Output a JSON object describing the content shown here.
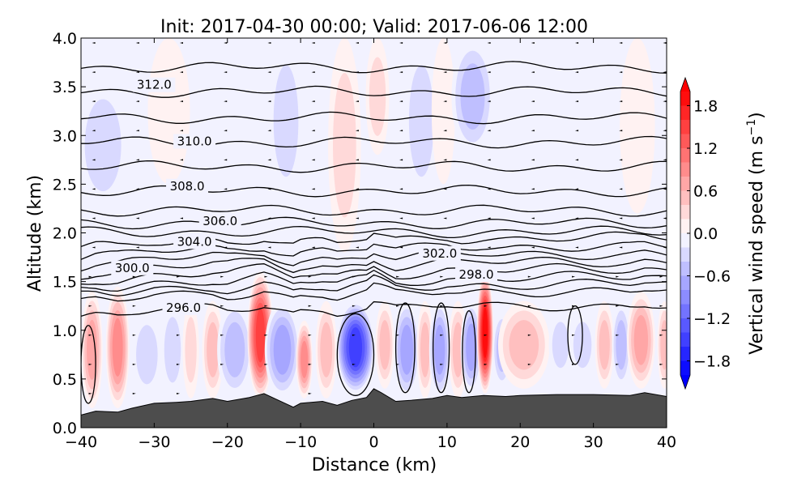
{
  "chart_data": {
    "type": "heatmap",
    "title": "Init: 2017-04-30 00:00; Valid: 2017-06-06 12:00",
    "xlabel": "Distance (km)",
    "ylabel": "Altitude (km)",
    "xlim": [
      -40,
      40
    ],
    "ylim": [
      0.0,
      4.0
    ],
    "xticks": [
      -40,
      -30,
      -20,
      -10,
      0,
      10,
      20,
      30,
      40
    ],
    "xtick_labels": [
      "−40",
      "−30",
      "−20",
      "−10",
      "0",
      "10",
      "20",
      "30",
      "40"
    ],
    "yticks": [
      0.0,
      0.5,
      1.0,
      1.5,
      2.0,
      2.5,
      3.0,
      3.5,
      4.0
    ],
    "ytick_labels": [
      "0.0",
      "0.5",
      "1.0",
      "1.5",
      "2.0",
      "2.5",
      "3.0",
      "3.5",
      "4.0"
    ],
    "colorbar": {
      "label": "Vertical wind speed (m s⁻¹)",
      "label_main": "Vertical wind speed (m s",
      "label_sup": "−1",
      "label_close": ")",
      "range": [
        -2.0,
        2.0
      ],
      "level_step": 0.2,
      "extend": "both",
      "colormap": "bwr",
      "ticks": [
        1.8,
        1.2,
        0.6,
        0.0,
        -0.6,
        -1.2,
        -1.8
      ],
      "tick_labels": [
        "1.8",
        "1.2",
        "0.6",
        "0.0",
        "−0.6",
        "−1.2",
        "−1.8"
      ],
      "min_color": "#0000ff",
      "max_color": "#ff0000",
      "mid_color": "#ffffff"
    },
    "terrain": {
      "color": "#4d4d4d",
      "distance_km": [
        -40,
        -38,
        -35,
        -33,
        -30,
        -27,
        -25,
        -22,
        -20,
        -17,
        -15,
        -13,
        -11,
        -10,
        -7,
        -5,
        -3,
        -1,
        0,
        1,
        3,
        5,
        8,
        10,
        12,
        15,
        18,
        20,
        25,
        30,
        35,
        37,
        40
      ],
      "altitude_km": [
        0.13,
        0.17,
        0.16,
        0.2,
        0.25,
        0.26,
        0.27,
        0.3,
        0.27,
        0.31,
        0.35,
        0.28,
        0.21,
        0.25,
        0.27,
        0.23,
        0.28,
        0.31,
        0.4,
        0.36,
        0.27,
        0.28,
        0.3,
        0.33,
        0.31,
        0.33,
        0.32,
        0.33,
        0.34,
        0.34,
        0.33,
        0.36,
        0.32
      ]
    },
    "vertical_wind_features": [
      {
        "x": -38.5,
        "half_width": 0.9,
        "z_bottom": 0.2,
        "z_top": 1.4,
        "w": 0.7
      },
      {
        "x": -35,
        "half_width": 1.0,
        "z_bottom": 0.2,
        "z_top": 1.45,
        "w": 1.0
      },
      {
        "x": -31,
        "half_width": 1.3,
        "z_bottom": 0.3,
        "z_top": 1.2,
        "w": -0.3
      },
      {
        "x": -27.5,
        "half_width": 1.0,
        "z_bottom": 0.3,
        "z_top": 1.3,
        "w": -0.4
      },
      {
        "x": -25,
        "half_width": 0.7,
        "z_bottom": 0.3,
        "z_top": 1.3,
        "w": 0.4
      },
      {
        "x": -22,
        "half_width": 0.9,
        "z_bottom": 0.3,
        "z_top": 1.3,
        "w": 0.5
      },
      {
        "x": -19,
        "half_width": 1.5,
        "z_bottom": 0.3,
        "z_top": 1.3,
        "w": -0.5
      },
      {
        "x": -15.5,
        "half_width": 1.1,
        "z_bottom": 0.3,
        "z_top": 1.6,
        "w": 1.6
      },
      {
        "x": -12.5,
        "half_width": 1.5,
        "z_bottom": 0.3,
        "z_top": 1.3,
        "w": -0.8
      },
      {
        "x": -9.5,
        "half_width": 0.7,
        "z_bottom": 0.3,
        "z_top": 1.1,
        "w": 0.9
      },
      {
        "x": -6.5,
        "half_width": 0.9,
        "z_bottom": 0.3,
        "z_top": 1.3,
        "w": 0.6
      },
      {
        "x": -2.5,
        "half_width": 1.6,
        "z_bottom": 0.35,
        "z_top": 1.3,
        "w": -1.5
      },
      {
        "x": 1.5,
        "half_width": 0.8,
        "z_bottom": 0.4,
        "z_top": 1.3,
        "w": 0.6
      },
      {
        "x": 4.5,
        "half_width": 1.1,
        "z_bottom": 0.3,
        "z_top": 1.3,
        "w": -0.8
      },
      {
        "x": 7,
        "half_width": 0.7,
        "z_bottom": 0.3,
        "z_top": 1.3,
        "w": 0.5
      },
      {
        "x": 9,
        "half_width": 0.9,
        "z_bottom": 0.3,
        "z_top": 1.3,
        "w": -0.7
      },
      {
        "x": 11.5,
        "half_width": 0.8,
        "z_bottom": 0.3,
        "z_top": 1.3,
        "w": 0.5
      },
      {
        "x": 13.3,
        "half_width": 0.9,
        "z_bottom": 0.35,
        "z_top": 1.3,
        "w": -0.7
      },
      {
        "x": 15.2,
        "half_width": 0.7,
        "z_bottom": 0.35,
        "z_top": 1.6,
        "w": 1.9
      },
      {
        "x": 17.5,
        "half_width": 0.8,
        "z_bottom": 0.4,
        "z_top": 1.2,
        "w": -0.5
      },
      {
        "x": 20.5,
        "half_width": 2.2,
        "z_bottom": 0.4,
        "z_top": 1.3,
        "w": 0.6
      },
      {
        "x": 25.5,
        "half_width": 1.0,
        "z_bottom": 0.5,
        "z_top": 1.2,
        "w": -0.3
      },
      {
        "x": 28.5,
        "half_width": 1.1,
        "z_bottom": 0.5,
        "z_top": 1.2,
        "w": -0.4
      },
      {
        "x": 31.5,
        "half_width": 0.8,
        "z_bottom": 0.4,
        "z_top": 1.3,
        "w": 0.6
      },
      {
        "x": 33.8,
        "half_width": 0.8,
        "z_bottom": 0.4,
        "z_top": 1.3,
        "w": -0.5
      },
      {
        "x": 36.5,
        "half_width": 1.2,
        "z_bottom": 0.4,
        "z_top": 1.4,
        "w": 0.8
      },
      {
        "x": 39.7,
        "half_width": 0.6,
        "z_bottom": 0.4,
        "z_top": 1.3,
        "w": 0.5
      },
      {
        "x": -37,
        "half_width": 2.2,
        "z_bottom": 2.2,
        "z_top": 3.6,
        "w": -0.4
      },
      {
        "x": -28,
        "half_width": 1.8,
        "z_bottom": 2.5,
        "z_top": 4.0,
        "w": 0.2
      },
      {
        "x": -12,
        "half_width": 1.5,
        "z_bottom": 2.3,
        "z_top": 4.0,
        "w": -0.4
      },
      {
        "x": -4,
        "half_width": 1.4,
        "z_bottom": 1.8,
        "z_top": 4.0,
        "w": 0.3
      },
      {
        "x": 0.5,
        "half_width": 1.0,
        "z_bottom": 2.8,
        "z_top": 4.0,
        "w": 0.4
      },
      {
        "x": 6.5,
        "half_width": 1.5,
        "z_bottom": 2.3,
        "z_top": 4.0,
        "w": -0.4
      },
      {
        "x": 9.5,
        "half_width": 1.0,
        "z_bottom": 2.5,
        "z_top": 4.0,
        "w": 0.2
      },
      {
        "x": 13.5,
        "half_width": 1.8,
        "z_bottom": 2.8,
        "z_top": 4.0,
        "w": -0.6
      },
      {
        "x": 36,
        "half_width": 1.5,
        "z_bottom": 2.2,
        "z_top": 4.0,
        "w": 0.2
      }
    ],
    "theta_contours": {
      "levels": [
        296.0,
        297.0,
        298.0,
        299.0,
        300.0,
        301.0,
        302.0,
        303.0,
        304.0,
        305.0,
        306.0,
        307.0,
        308.0,
        309.0,
        310.0,
        311.0,
        312.0,
        313.0
      ],
      "base_altitude_km": [
        1.22,
        1.37,
        1.44,
        1.51,
        1.59,
        1.67,
        1.75,
        1.83,
        1.92,
        2.01,
        2.1,
        2.23,
        2.43,
        2.68,
        2.93,
        3.18,
        3.45,
        3.7
      ],
      "labels": [
        {
          "text": "312.0",
          "x_km": -30,
          "z_km": 3.52
        },
        {
          "text": "310.0",
          "x_km": -24.5,
          "z_km": 2.94
        },
        {
          "text": "308.0",
          "x_km": -25.5,
          "z_km": 2.48
        },
        {
          "text": "306.0",
          "x_km": -21,
          "z_km": 2.12
        },
        {
          "text": "304.0",
          "x_km": -24.5,
          "z_km": 1.91
        },
        {
          "text": "300.0",
          "x_km": -33,
          "z_km": 1.64
        },
        {
          "text": "302.0",
          "x_km": 9,
          "z_km": 1.79
        },
        {
          "text": "298.0",
          "x_km": 14,
          "z_km": 1.57
        },
        {
          "text": "296.0",
          "x_km": -26,
          "z_km": 1.23
        }
      ]
    },
    "closed_contours": [
      {
        "center_x_km": -39,
        "center_z_km": 0.65,
        "half_width_km": 1.0,
        "half_height_km": 0.4
      },
      {
        "center_x_km": -2.5,
        "center_z_km": 0.75,
        "half_width_km": 2.5,
        "half_height_km": 0.42
      },
      {
        "center_x_km": 4.3,
        "center_z_km": 0.82,
        "half_width_km": 1.3,
        "half_height_km": 0.46
      },
      {
        "center_x_km": 9.2,
        "center_z_km": 0.82,
        "half_width_km": 1.1,
        "half_height_km": 0.46
      },
      {
        "center_x_km": 13.0,
        "center_z_km": 0.78,
        "half_width_km": 0.9,
        "half_height_km": 0.42
      },
      {
        "center_x_km": 27.5,
        "center_z_km": 0.95,
        "half_width_km": 1.0,
        "half_height_km": 0.3
      }
    ],
    "grid": false
  }
}
